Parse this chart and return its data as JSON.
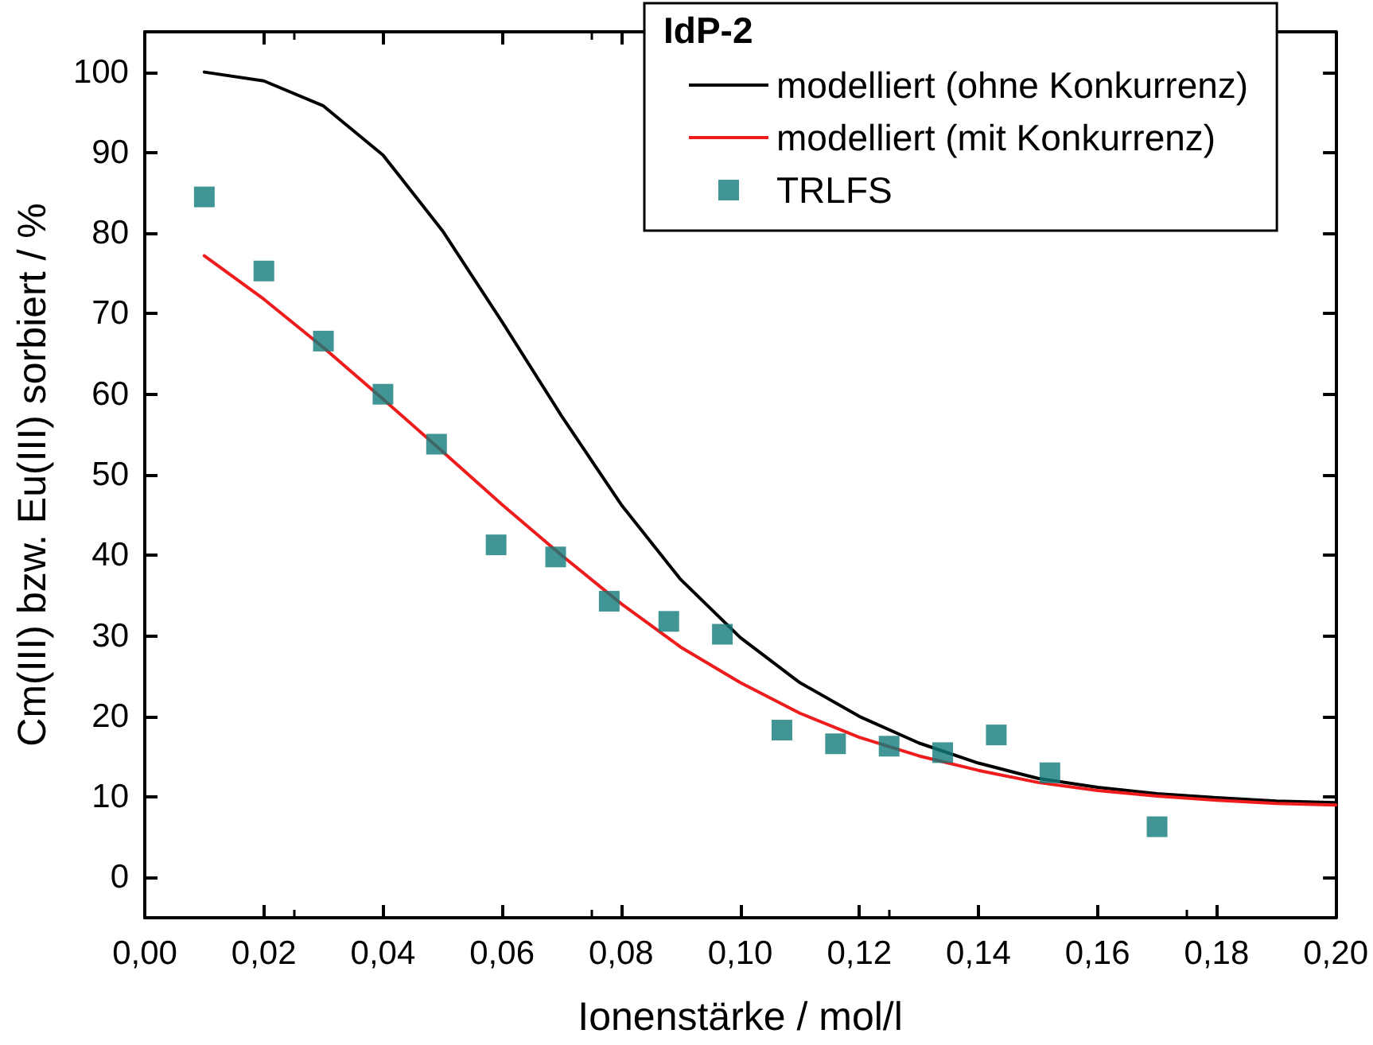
{
  "chart_data": {
    "type": "line",
    "xlabel": "Ionenstärke / mol/l",
    "ylabel": "Cm(III) bzw. Eu(III) sorbiert / %",
    "legend_title": "IdP-2",
    "legend": "top right",
    "grid": false,
    "xlim": [
      0,
      0.2
    ],
    "xticks": [
      {
        "value": 0,
        "label": "0,00"
      },
      {
        "value": 0.02,
        "label": "0,02"
      },
      {
        "value": 0.04,
        "label": "0,04"
      },
      {
        "value": 0.06,
        "label": "0,06"
      },
      {
        "value": 0.08,
        "label": "0,08"
      },
      {
        "value": 0.1,
        "label": "0,10"
      },
      {
        "value": 0.12,
        "label": "0,12"
      },
      {
        "value": 0.14,
        "label": "0,14"
      },
      {
        "value": 0.16,
        "label": "0,16"
      },
      {
        "value": 0.18,
        "label": "0,18"
      },
      {
        "value": 0.2,
        "label": "0,20"
      }
    ],
    "ylim": [
      -5,
      105
    ],
    "yticks": [
      0,
      10,
      20,
      30,
      40,
      50,
      60,
      70,
      80,
      90,
      100
    ],
    "series": [
      {
        "name": "modelliert (ohne Konkurrenz)",
        "marker": "none",
        "line_style": "solid",
        "color": "#000000",
        "x": [
          0.01,
          0.02,
          0.03,
          0.04,
          0.05,
          0.06,
          0.07,
          0.08,
          0.09,
          0.1,
          0.11,
          0.12,
          0.13,
          0.14,
          0.15,
          0.16,
          0.17,
          0.18,
          0.19,
          0.2
        ],
        "values": [
          100,
          98.9,
          95.8,
          89.7,
          80.3,
          69,
          57.3,
          46.3,
          37,
          29.8,
          24.2,
          20,
          16.7,
          14.2,
          12.3,
          11.2,
          10.4,
          9.9,
          9.5,
          9.3
        ]
      },
      {
        "name": "modelliert (mit Konkurrenz)",
        "marker": "none",
        "line_style": "solid",
        "color": "#ee1c1c",
        "x": [
          0.01,
          0.02,
          0.03,
          0.04,
          0.05,
          0.06,
          0.07,
          0.08,
          0.09,
          0.1,
          0.11,
          0.12,
          0.13,
          0.14,
          0.15,
          0.16,
          0.17,
          0.18,
          0.19,
          0.2
        ],
        "values": [
          77.2,
          71.8,
          65.8,
          59.4,
          52.9,
          46.3,
          40,
          34,
          28.6,
          24.2,
          20.4,
          17.4,
          15.1,
          13.3,
          11.8,
          10.8,
          10.1,
          9.6,
          9.2,
          9
        ]
      },
      {
        "name": "TRLFS",
        "type": "scatter",
        "marker": "square",
        "color": "#137a7a",
        "x": [
          0.01,
          0.02,
          0.03,
          0.04,
          0.049,
          0.059,
          0.069,
          0.078,
          0.088,
          0.097,
          0.107,
          0.116,
          0.125,
          0.134,
          0.143,
          0.152,
          0.17
        ],
        "values": [
          84.5,
          75.3,
          66.6,
          60,
          53.8,
          41.3,
          39.8,
          34.3,
          31.8,
          30.2,
          18.3,
          16.6,
          16.3,
          15.5,
          17.7,
          13,
          6.3
        ]
      }
    ]
  }
}
